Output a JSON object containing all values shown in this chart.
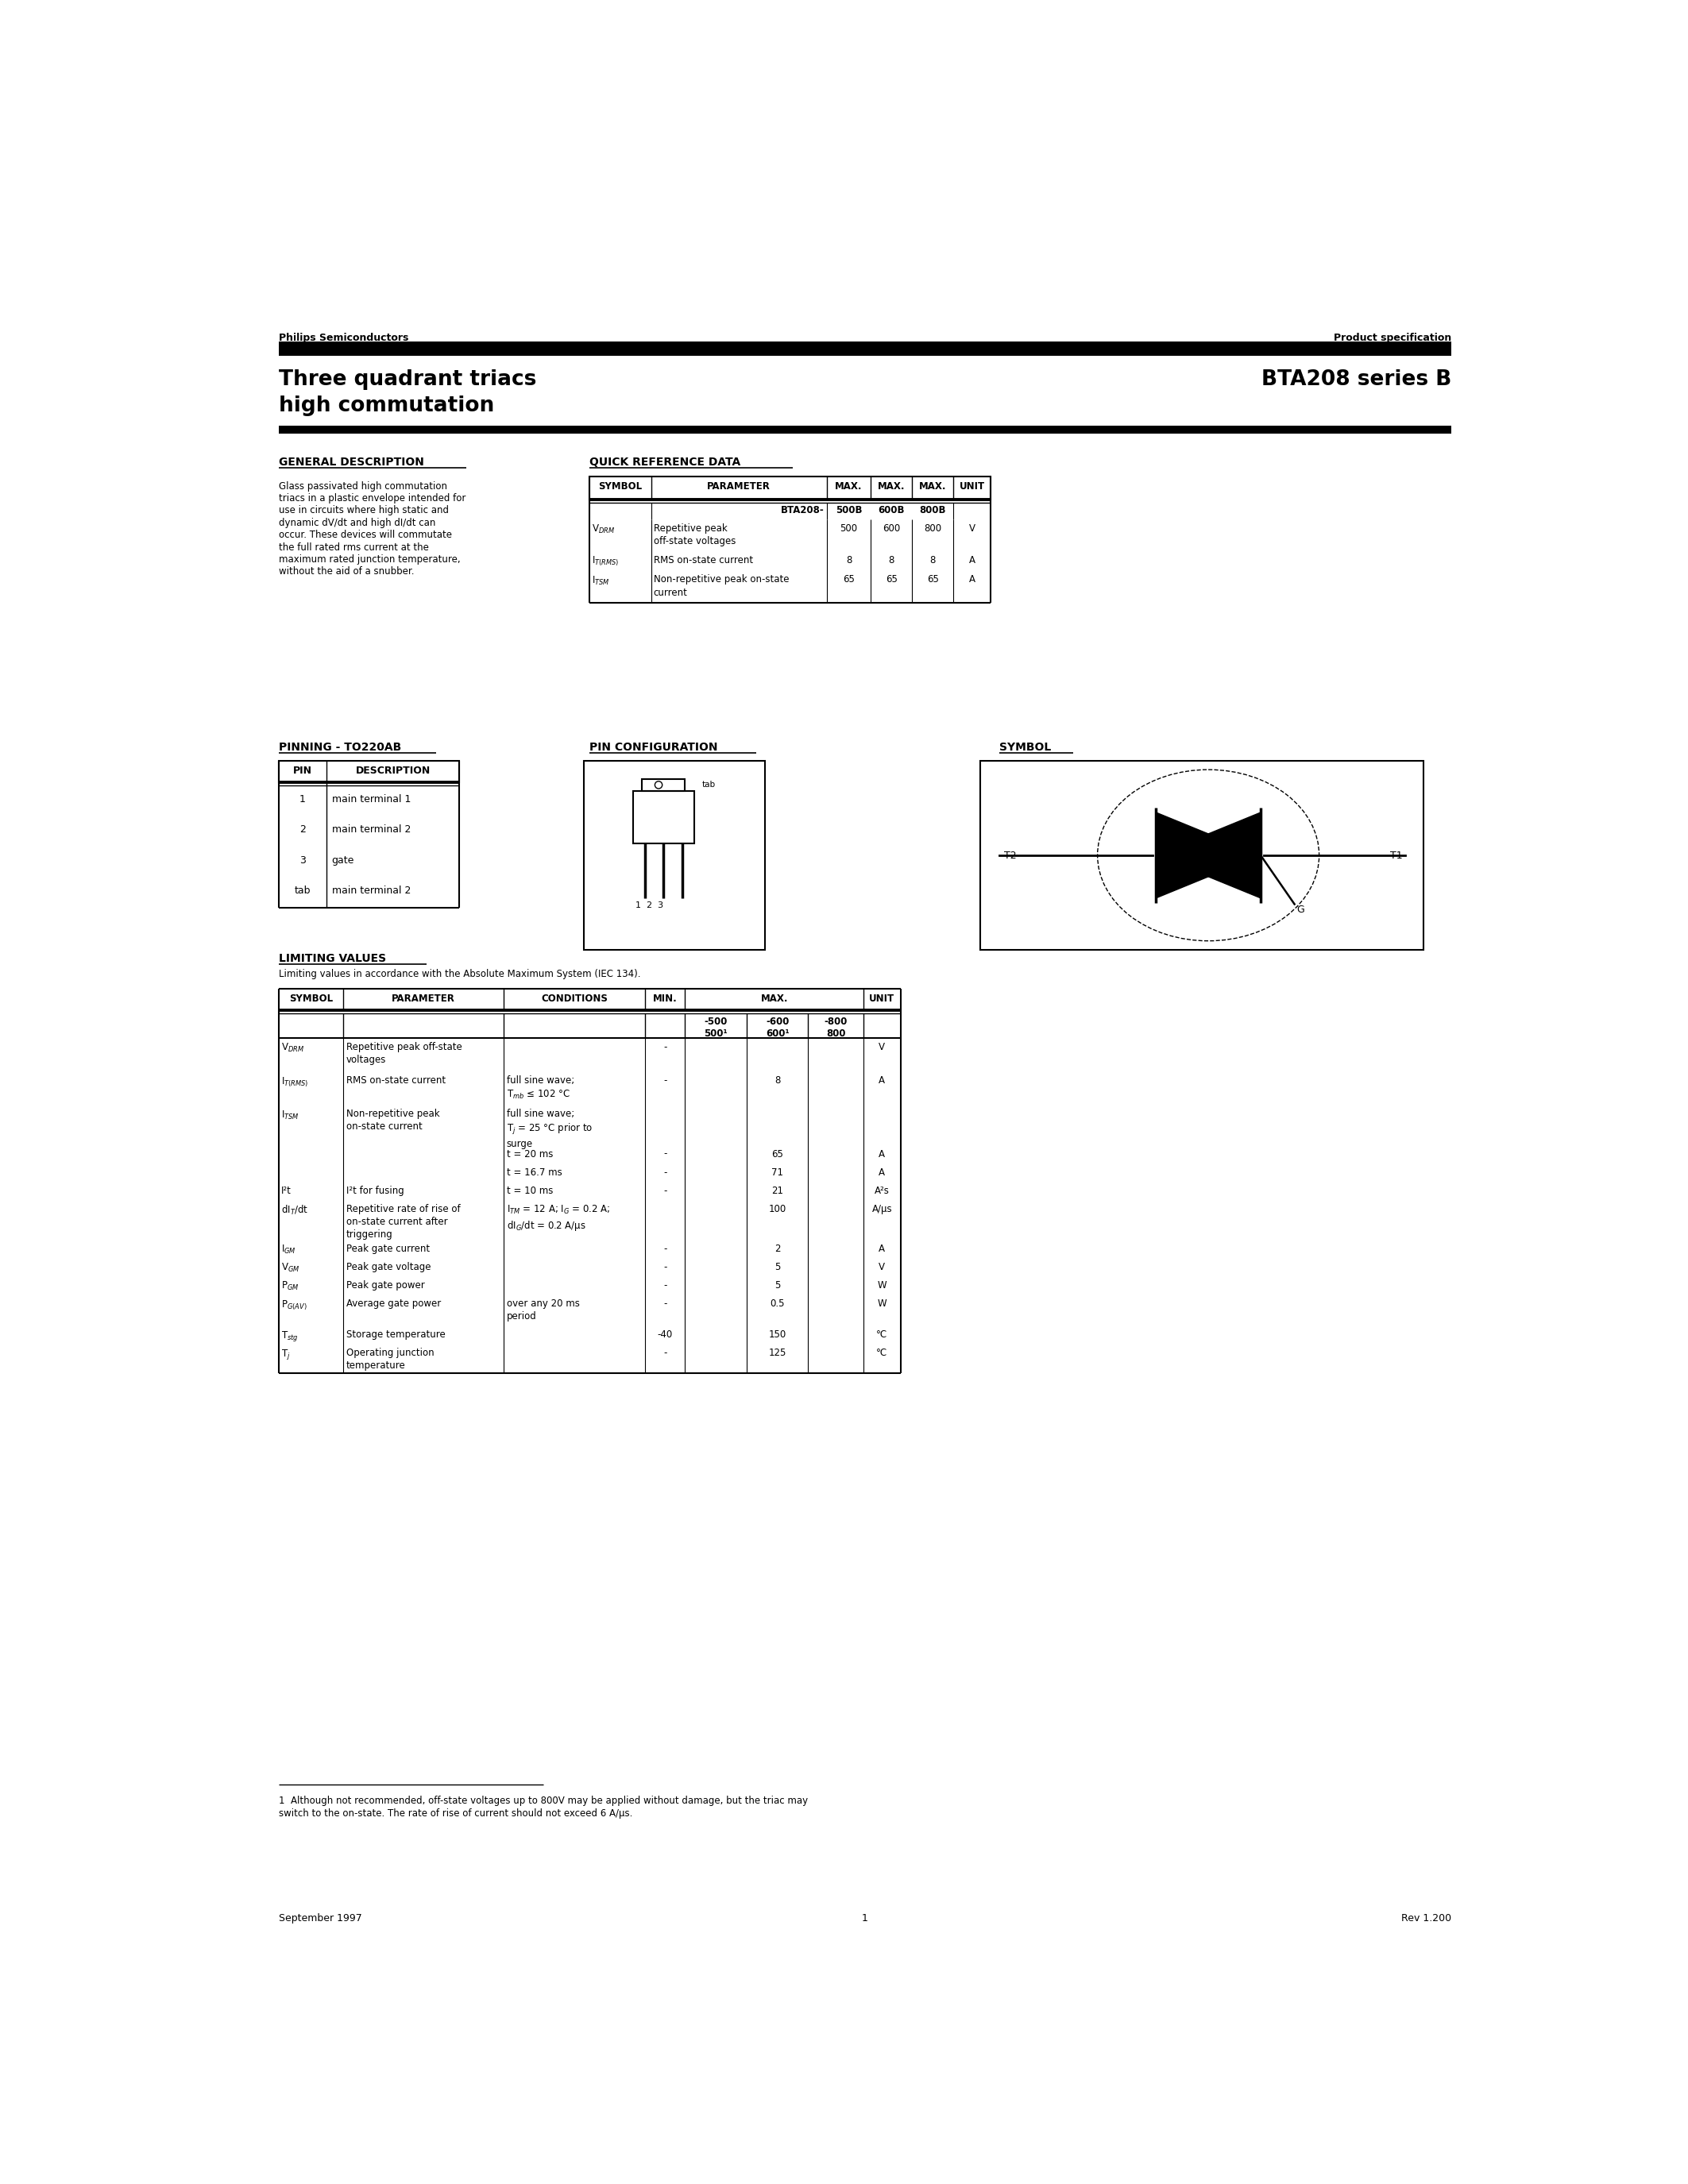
{
  "page_width": 21.25,
  "page_height": 27.5,
  "bg_color": "#ffffff",
  "header_left": "Philips Semiconductors",
  "header_right": "Product specification",
  "title_left_line1": "Three quadrant triacs",
  "title_left_line2": "high commutation",
  "title_right": "BTA208 series B",
  "section_gen_desc": "GENERAL DESCRIPTION",
  "section_qrd": "QUICK REFERENCE DATA",
  "gen_desc_lines": [
    "Glass passivated high commutation",
    "triacs in a plastic envelope intended for",
    "use in circuits where high static and",
    "dynamic dV/dt and high dI/dt can",
    "occur. These devices will commutate",
    "the full rated rms current at the",
    "maximum rated junction temperature,",
    "without the aid of a snubber."
  ],
  "section_pinning": "PINNING - TO220AB",
  "section_pin_config": "PIN CONFIGURATION",
  "section_symbol": "SYMBOL",
  "pin_rows": [
    [
      "1",
      "main terminal 1"
    ],
    [
      "2",
      "main terminal 2"
    ],
    [
      "3",
      "gate"
    ],
    [
      "tab",
      "main terminal 2"
    ]
  ],
  "section_limiting": "LIMITING VALUES",
  "limiting_subtitle": "Limiting values in accordance with the Absolute Maximum System (IEC 134).",
  "footnote_line1": "1  Although not recommended, off-state voltages up to 800V may be applied without damage, but the triac may",
  "footnote_line2": "switch to the on-state. The rate of rise of current should not exceed 6 A/μs.",
  "footer_left": "September 1997",
  "footer_center": "1",
  "footer_right": "Rev 1.200"
}
